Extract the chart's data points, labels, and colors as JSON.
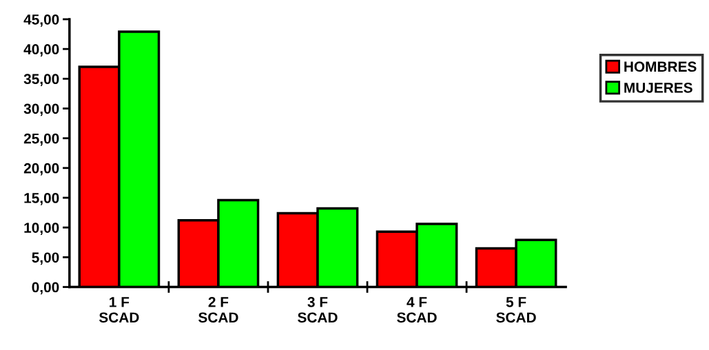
{
  "chart_data": {
    "type": "bar",
    "categories": [
      "1 F\nSCAD",
      "2 F\nSCAD",
      "3 F\nSCAD",
      "4 F\nSCAD",
      "5 F\nSCAD"
    ],
    "series": [
      {
        "name": "HOMBRES",
        "color": "#ff0000",
        "values": [
          37.0,
          11.2,
          12.4,
          9.3,
          6.5
        ]
      },
      {
        "name": "MUJERES",
        "color": "#00ff00",
        "values": [
          42.9,
          14.6,
          13.2,
          10.6,
          7.9
        ]
      }
    ],
    "ylim": [
      0,
      45
    ],
    "yticks": [
      {
        "value": 0,
        "label": "0,00"
      },
      {
        "value": 5,
        "label": "5,00"
      },
      {
        "value": 10,
        "label": "10,00"
      },
      {
        "value": 15,
        "label": "15,00"
      },
      {
        "value": 20,
        "label": "20,00"
      },
      {
        "value": 25,
        "label": "25,00"
      },
      {
        "value": 30,
        "label": "30,00"
      },
      {
        "value": 35,
        "label": "35,00"
      },
      {
        "value": 40,
        "label": "40,00"
      },
      {
        "value": 45,
        "label": "45,00"
      }
    ],
    "legend": "right",
    "grid": false
  }
}
